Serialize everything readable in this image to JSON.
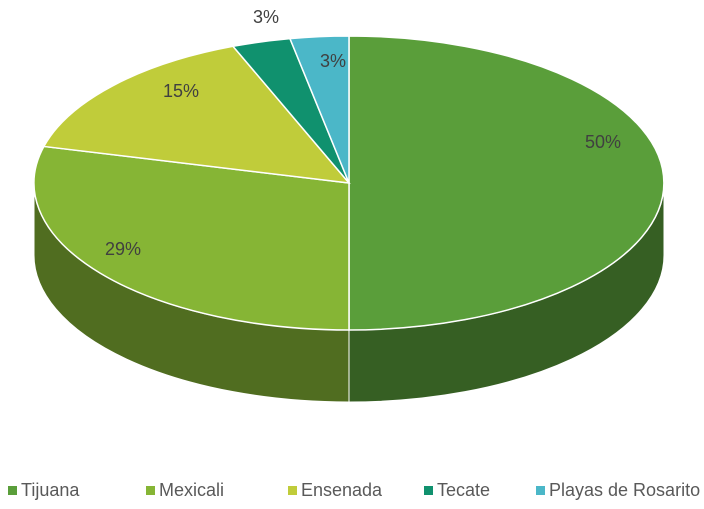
{
  "chart_data": {
    "type": "pie",
    "categories": [
      "Tijuana",
      "Mexicali",
      "Ensenada",
      "Tecate",
      "Playas de Rosarito"
    ],
    "values": [
      50,
      29,
      15,
      3,
      3
    ],
    "value_labels": [
      "50%",
      "29%",
      "15%",
      "3%",
      "3%"
    ],
    "colors": [
      "#5a9e3a",
      "#86b535",
      "#c0cc3a",
      "#10916e",
      "#4bb7c8"
    ],
    "legend": "bottom"
  }
}
